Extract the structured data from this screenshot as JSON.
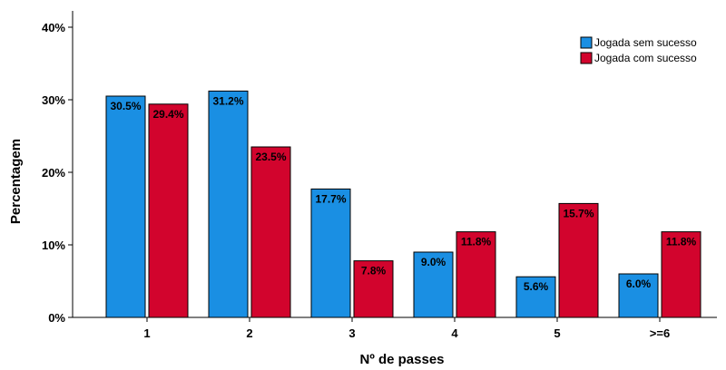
{
  "chart_data": {
    "type": "bar",
    "title": "",
    "xlabel": "Nº de passes",
    "ylabel": "Percentagem",
    "categories": [
      "1",
      "2",
      "3",
      "4",
      "5",
      ">=6"
    ],
    "ylim": [
      0,
      40
    ],
    "yticks": [
      0,
      10,
      20,
      30,
      40
    ],
    "ytick_labels": [
      "0%",
      "10%",
      "20%",
      "30%",
      "40%"
    ],
    "grid": false,
    "legend_position": "top-right",
    "series": [
      {
        "name": "Jogada sem sucesso",
        "color": "#1a8fe3",
        "values": [
          30.5,
          31.2,
          17.7,
          9.0,
          5.6,
          6.0
        ],
        "labels": [
          "30.5%",
          "31.2%",
          "17.7%",
          "9.0%",
          "5.6%",
          "6.0%"
        ]
      },
      {
        "name": "Jogada com sucesso",
        "color": "#d2042d",
        "values": [
          29.4,
          23.5,
          7.8,
          11.8,
          15.7,
          11.8
        ],
        "labels": [
          "29.4%",
          "23.5%",
          "7.8%",
          "11.8%",
          "15.7%",
          "11.8%"
        ]
      }
    ]
  }
}
